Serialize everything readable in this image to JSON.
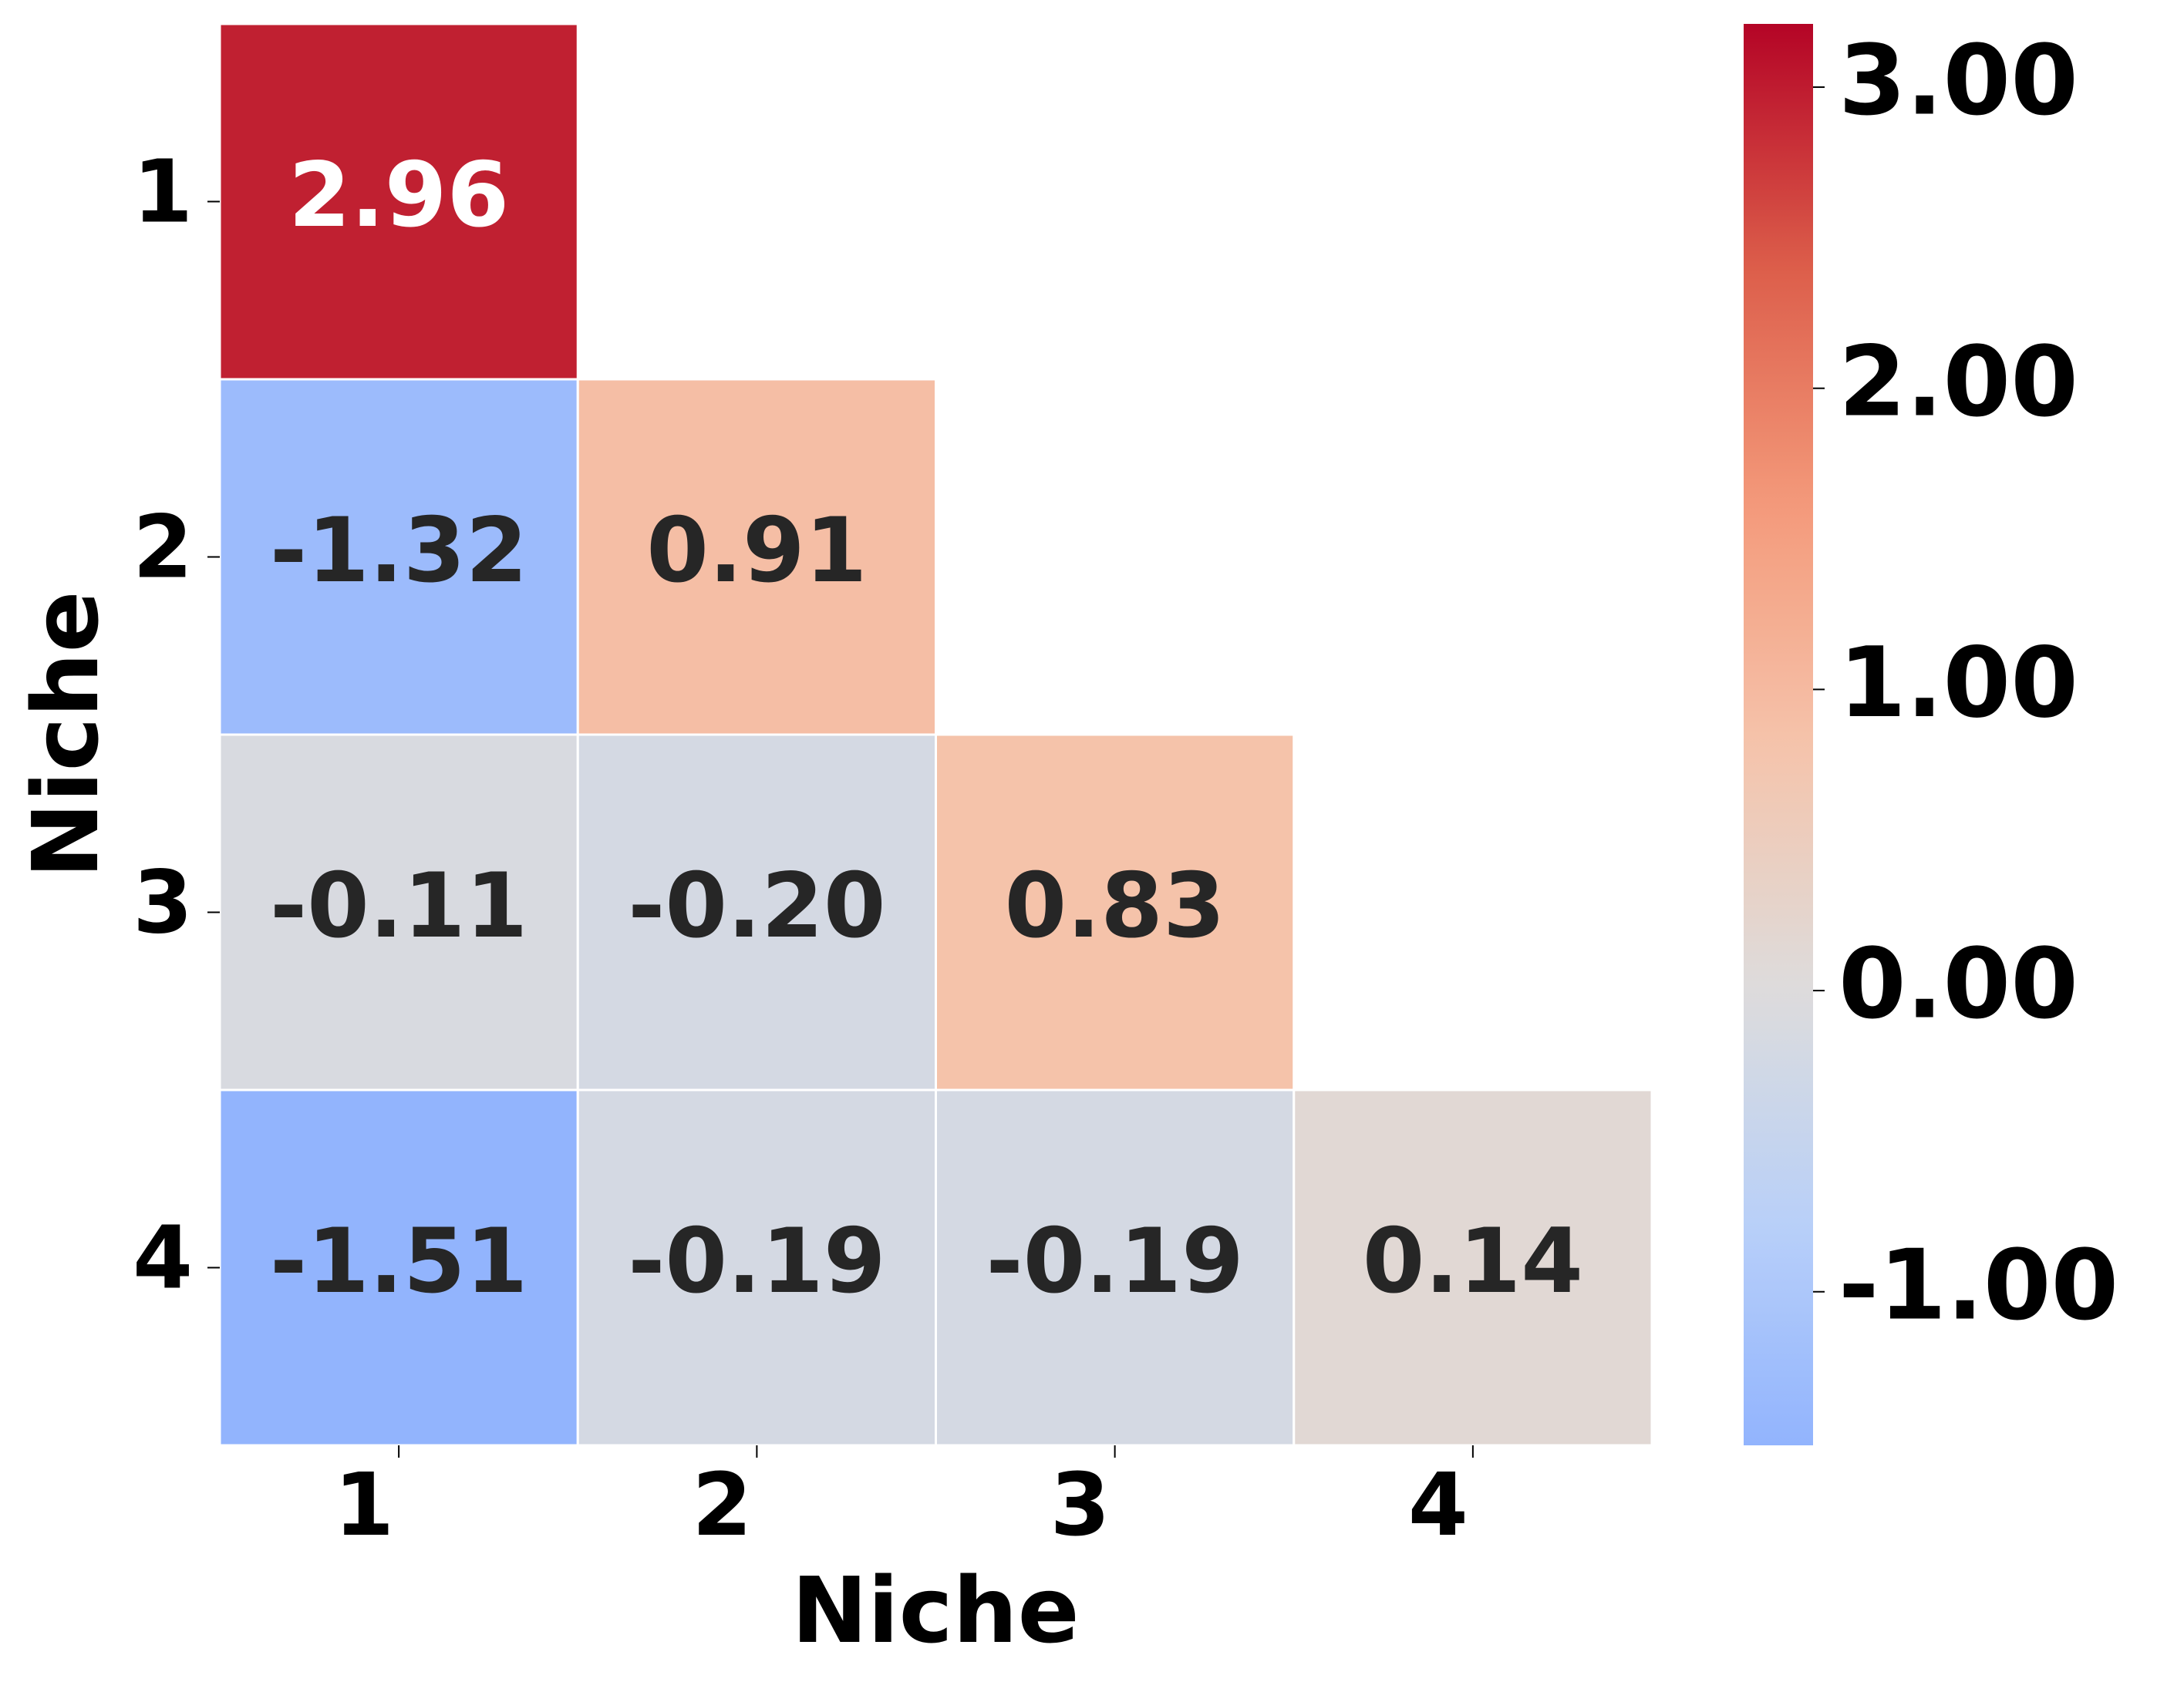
{
  "chart_data": {
    "type": "heatmap",
    "xlabel": "Niche",
    "ylabel": "Niche",
    "x_categories": [
      "1",
      "2",
      "3",
      "4"
    ],
    "y_categories": [
      "1",
      "2",
      "3",
      "4"
    ],
    "values": [
      [
        2.96,
        null,
        null,
        null
      ],
      [
        -1.32,
        0.91,
        null,
        null
      ],
      [
        -0.11,
        -0.2,
        0.83,
        null
      ],
      [
        -1.51,
        -0.19,
        -0.19,
        0.14
      ]
    ],
    "value_labels": [
      [
        "2.96",
        null,
        null,
        null
      ],
      [
        "-1.32",
        "0.91",
        null,
        null
      ],
      [
        "-0.11",
        "-0.20",
        "0.83",
        null
      ],
      [
        "-1.51",
        "-0.19",
        "-0.19",
        "0.14"
      ]
    ],
    "colormap": "coolwarm",
    "clim": [
      -1.51,
      3.21
    ],
    "cticks": [
      {
        "value": -1,
        "label": "-1.00"
      },
      {
        "value": 0,
        "label": "0.00"
      },
      {
        "value": 1,
        "label": "1.00"
      },
      {
        "value": 2,
        "label": "2.00"
      },
      {
        "value": 3,
        "label": "3.00"
      }
    ]
  }
}
